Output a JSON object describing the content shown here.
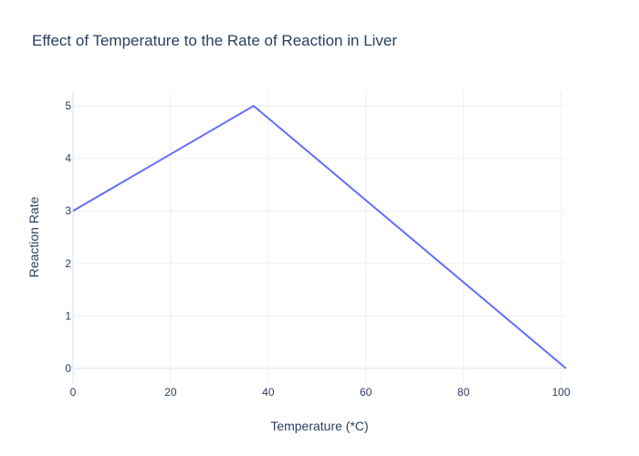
{
  "chart_data": {
    "type": "line",
    "title": "Effect of Temperature to the Rate of Reaction in Liver",
    "xlabel": "Temperature (*C)",
    "ylabel": "Reaction Rate",
    "x": [
      0,
      37,
      101
    ],
    "series": [
      {
        "values": [
          3,
          5,
          0
        ],
        "color": "#636efa"
      }
    ],
    "xlim": [
      0,
      101
    ],
    "ylim": [
      -0.28,
      5.28
    ],
    "xticks": [
      0,
      20,
      40,
      60,
      80,
      100
    ],
    "yticks": [
      0,
      1,
      2,
      3,
      4,
      5
    ],
    "xtick_labels": [
      "0",
      "20",
      "40",
      "60",
      "80",
      "100"
    ],
    "ytick_labels": [
      "0",
      "1",
      "2",
      "3",
      "4",
      "5"
    ],
    "grid": true,
    "legend": "none"
  }
}
